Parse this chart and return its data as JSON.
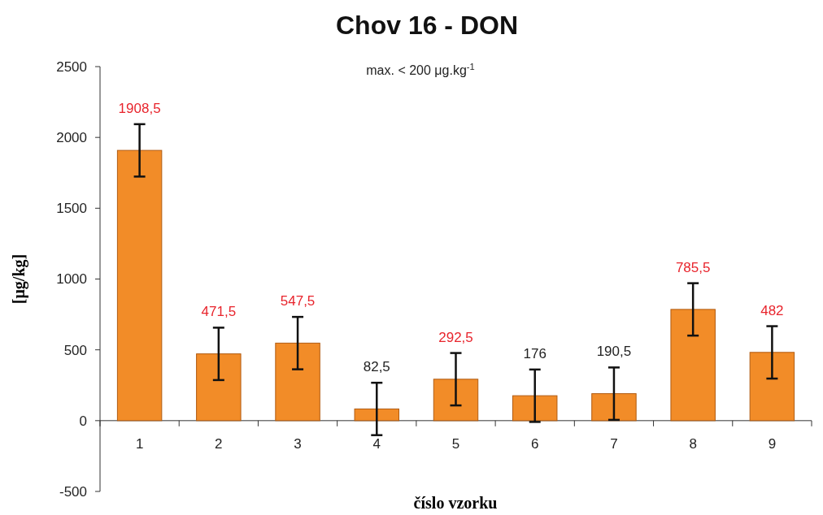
{
  "chart_data": {
    "type": "bar",
    "title": "Chov 16 - DON",
    "subtitle": "max. < 200 μg.kg$^{-1}$",
    "xlabel": "číslo vzorku",
    "ylabel": "[μg/kg]",
    "categories": [
      "1",
      "2",
      "3",
      "4",
      "5",
      "6",
      "7",
      "8",
      "9"
    ],
    "values": [
      1908.5,
      471.5,
      547.5,
      82.5,
      292.5,
      176,
      190.5,
      785.5,
      482
    ],
    "errors": [
      185,
      185,
      185,
      185,
      185,
      185,
      185,
      185,
      185
    ],
    "value_labels": [
      "1908,5",
      "471,5",
      "547,5",
      "82,5",
      "292,5",
      "176",
      "190,5",
      "785,5",
      "482"
    ],
    "color": "#f28c28",
    "ylim": [
      -500,
      2500
    ],
    "yticks": [
      -500,
      0,
      500,
      1000,
      1500,
      2000,
      2500
    ]
  }
}
